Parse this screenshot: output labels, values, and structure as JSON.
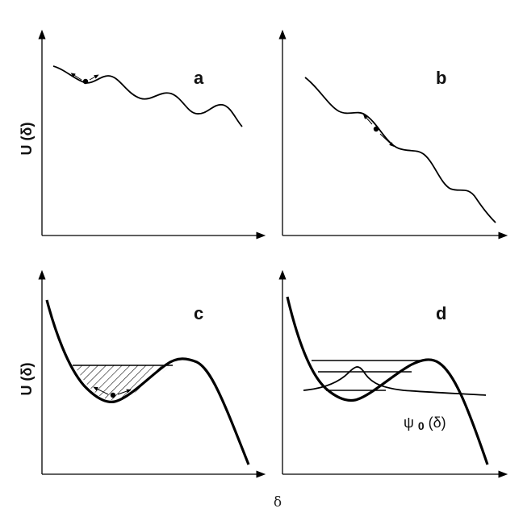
{
  "figure": {
    "y_axis_label": "U (δ)",
    "x_axis_label": "δ",
    "panels": [
      {
        "id": "a",
        "label": "a"
      },
      {
        "id": "b",
        "label": "b"
      },
      {
        "id": "c",
        "label": "c"
      },
      {
        "id": "d",
        "label": "d"
      }
    ],
    "wavefunction_label": {
      "psi": "ψ",
      "subscript": "0",
      "argument": "(δ)"
    }
  }
}
